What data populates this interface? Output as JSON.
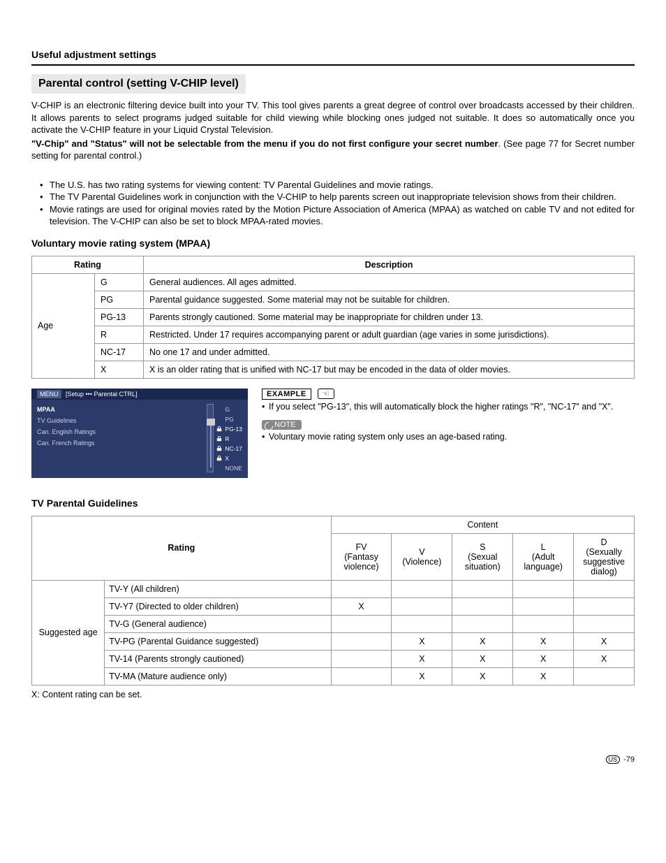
{
  "header": "Useful adjustment settings",
  "section_title": "Parental control (setting V-CHIP level)",
  "intro": "V-CHIP is an electronic filtering device built into your TV. This tool gives parents a great degree of control over broadcasts accessed by their children. It allows parents to select programs judged suitable for child viewing while blocking ones judged not suitable. It does so automatically once you activate the V-CHIP feature in your Liquid Crystal Television.",
  "intro_bold": "\"V-Chip\" and \"Status\" will not be selectable from the menu if you do not first configure your secret number",
  "intro_after_bold": ". (See page 77 for Secret number setting for parental control.)",
  "bullets": [
    "The U.S. has two rating systems for viewing content: TV Parental Guidelines and movie ratings.",
    "The TV Parental Guidelines work in conjunction with the V-CHIP to help parents screen out inappropriate television shows from their children.",
    "Movie ratings are used for original movies rated by the Motion Picture Association of America (MPAA) as watched on cable TV and not edited for television. The V-CHIP can also be set to block MPAA-rated movies."
  ],
  "mpaa_heading": "Voluntary movie rating system (MPAA)",
  "mpaa_table": {
    "col_rating": "Rating",
    "col_desc": "Description",
    "row_label": "Age",
    "rows": [
      {
        "code": "G",
        "desc": "General audiences. All ages admitted."
      },
      {
        "code": "PG",
        "desc": "Parental guidance suggested. Some material may not be suitable for children."
      },
      {
        "code": "PG-13",
        "desc": "Parents strongly cautioned. Some material may be inappropriate for children under 13."
      },
      {
        "code": "R",
        "desc": "Restricted. Under 17 requires accompanying parent or adult guardian (age varies in some jurisdictions)."
      },
      {
        "code": "NC-17",
        "desc": "No one 17 and under admitted."
      },
      {
        "code": "X",
        "desc": "X is an older rating that is unified with NC-17 but may be encoded in the data of older movies."
      }
    ]
  },
  "osd": {
    "menu": "MENU",
    "breadcrumb": "[Setup ••• Parental CTRL]",
    "left_items": [
      "MPAA",
      "TV Guidelines",
      "Can. English Ratings",
      "Can. French Ratings"
    ],
    "right_items": [
      {
        "code": "G",
        "locked": false
      },
      {
        "code": "PG",
        "locked": false
      },
      {
        "code": "PG-13",
        "locked": true
      },
      {
        "code": "R",
        "locked": true
      },
      {
        "code": "NC-17",
        "locked": true
      },
      {
        "code": "X",
        "locked": true
      },
      {
        "code": "NONE",
        "locked": false
      }
    ]
  },
  "example": {
    "label": "EXAMPLE",
    "text": "If you select \"PG-13\", this will automatically block the higher ratings \"R\", \"NC-17\" and \"X\".",
    "note_label": "NOTE",
    "note_text": "Voluntary movie rating system only uses an age-based rating."
  },
  "tvpg_heading": "TV Parental Guidelines",
  "tvpg_table": {
    "rating_header": "Rating",
    "content_header": "Content",
    "columns": [
      {
        "code": "FV",
        "sub": "(Fantasy violence)"
      },
      {
        "code": "V",
        "sub": "(Violence)"
      },
      {
        "code": "S",
        "sub": "(Sexual situation)"
      },
      {
        "code": "L",
        "sub": "(Adult language)"
      },
      {
        "code": "D",
        "sub": "(Sexually suggestive dialog)"
      }
    ],
    "row_label": "Suggested age",
    "rows": [
      {
        "label": "TV-Y (All children)",
        "cells": [
          "",
          "",
          "",
          "",
          ""
        ]
      },
      {
        "label": "TV-Y7 (Directed to older children)",
        "cells": [
          "X",
          "",
          "",
          "",
          ""
        ]
      },
      {
        "label": "TV-G (General audience)",
        "cells": [
          "",
          "",
          "",
          "",
          ""
        ]
      },
      {
        "label": "TV-PG (Parental Guidance suggested)",
        "cells": [
          "",
          "X",
          "X",
          "X",
          "X"
        ]
      },
      {
        "label": "TV-14 (Parents strongly cautioned)",
        "cells": [
          "",
          "X",
          "X",
          "X",
          "X"
        ]
      },
      {
        "label": "TV-MA (Mature audience only)",
        "cells": [
          "",
          "X",
          "X",
          "X",
          ""
        ]
      }
    ]
  },
  "footnote": "X: Content rating can be set.",
  "page_num": "-79",
  "us_badge": "US"
}
